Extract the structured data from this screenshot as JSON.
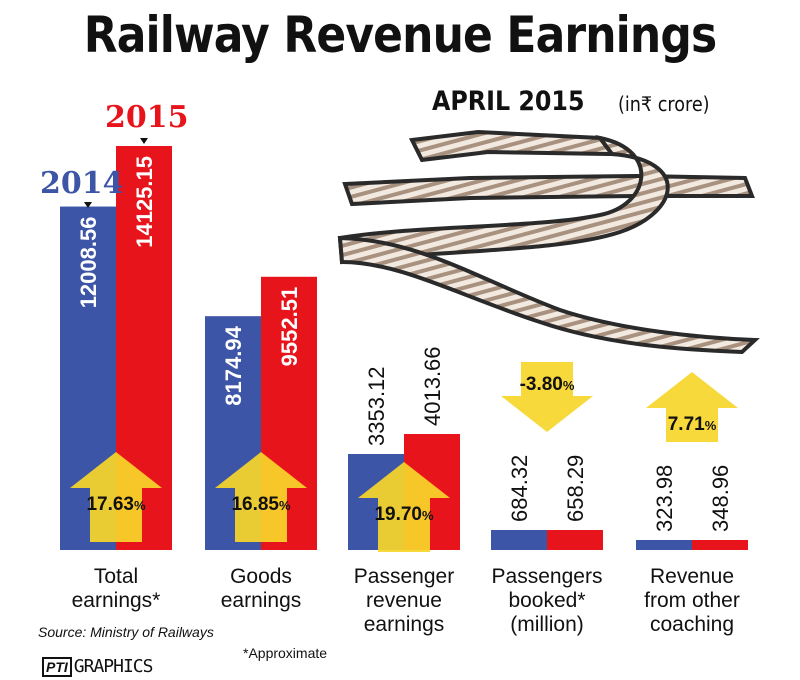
{
  "header": {
    "title": "Railway Revenue Earnings",
    "subtitle": "APRIL 2015",
    "unit": "(in₹ crore)"
  },
  "colors": {
    "y2014": "#3d55a6",
    "y2015": "#e8141b",
    "arrow": "#f7d62a",
    "text": "#111111"
  },
  "chart_data": {
    "type": "bar",
    "title": "Railway Revenue Earnings",
    "subtitle": "APRIL 2015 (in₹ crore)",
    "series": [
      {
        "name": "2014",
        "values": [
          12008.56,
          8174.94,
          3353.12,
          684.32,
          323.98
        ]
      },
      {
        "name": "2015",
        "values": [
          14125.15,
          9552.51,
          4013.66,
          658.29,
          348.96
        ]
      }
    ],
    "categories": [
      {
        "lines": [
          "Total",
          "earnings*"
        ],
        "change": "17.63",
        "sign": "%",
        "direction": "up"
      },
      {
        "lines": [
          "Goods",
          "earnings"
        ],
        "change": "16.85",
        "sign": "%",
        "direction": "up"
      },
      {
        "lines": [
          "Passenger",
          "revenue",
          "earnings"
        ],
        "change": "19.70",
        "sign": "%",
        "direction": "up"
      },
      {
        "lines": [
          "Passengers",
          "booked*",
          "(million)"
        ],
        "change": "-3.80",
        "sign": "%",
        "direction": "down"
      },
      {
        "lines": [
          "Revenue",
          "from other",
          "coaching"
        ],
        "change": "7.71",
        "sign": "%",
        "direction": "up"
      }
    ],
    "value_labels": [
      [
        "12008.56",
        "14125.15"
      ],
      [
        "8174.94",
        "9552.51"
      ],
      [
        "3353.12",
        "4013.66"
      ],
      [
        "684.32",
        "658.29"
      ],
      [
        "323.98",
        "348.96"
      ]
    ]
  },
  "footer": {
    "source": "Source: Ministry of Railways",
    "approximate": "*Approximate",
    "brand_logo": "PTI",
    "brand_text": "GRAPHICS"
  }
}
